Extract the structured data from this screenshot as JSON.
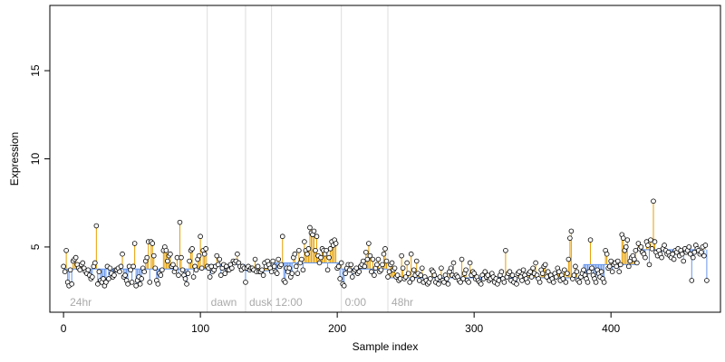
{
  "chart_data": {
    "type": "scatter",
    "title": "",
    "xlabel": "Sample index",
    "ylabel": "Expression",
    "xlim": [
      -10,
      480
    ],
    "ylim": [
      1.3,
      18.7
    ],
    "x_ticks": [
      0,
      100,
      200,
      300,
      400
    ],
    "y_ticks": [
      5,
      10,
      15
    ],
    "grid": false,
    "legend": "none",
    "colors": {
      "above_stem": "#E69F00",
      "below_stem": "#6495ED",
      "marker_edge": "#000000",
      "marker_fill": "#ffffff",
      "boundary_line": "#dddddd",
      "annotation": "#aaaaaa",
      "frame": "#000000"
    },
    "annotations": [
      {
        "x": 2,
        "boundary": null,
        "label": "24hr"
      },
      {
        "x": 105,
        "boundary": 105,
        "label": "dawn"
      },
      {
        "x": 133,
        "boundary": 133,
        "label": "dusk"
      },
      {
        "x": 152,
        "boundary": 152,
        "label": "12:00"
      },
      {
        "x": 203,
        "boundary": 203,
        "label": "0:00"
      },
      {
        "x": 237,
        "boundary": 237,
        "label": "48hr"
      }
    ],
    "baseline_segments": [
      {
        "x_start": 0,
        "x_end": 105,
        "value": 3.75
      },
      {
        "x_start": 105,
        "x_end": 133,
        "value": 4.0
      },
      {
        "x_start": 133,
        "x_end": 152,
        "value": 3.65
      },
      {
        "x_start": 152,
        "x_end": 203,
        "value": 4.1
      },
      {
        "x_start": 203,
        "x_end": 237,
        "value": 3.75
      },
      {
        "x_start": 237,
        "x_end": 380,
        "value": 3.25
      },
      {
        "x_start": 380,
        "x_end": 420,
        "value": 4.0
      },
      {
        "x_start": 420,
        "x_end": 461,
        "value": 4.85
      }
    ],
    "series": [
      {
        "values": [
          3.9,
          3.6,
          4.8,
          3.0,
          2.8,
          3.7,
          2.9,
          4.2,
          4.3,
          4.4,
          4.0,
          3.8,
          3.7,
          4.0,
          4.1,
          3.8,
          3.6,
          3.5,
          3.7,
          3.4,
          3.2,
          3.3,
          3.9,
          4.1,
          6.2,
          2.9,
          3.6,
          3.1,
          3.0,
          3.2,
          2.8,
          3.0,
          3.9,
          3.2,
          3.8,
          3.5,
          3.3,
          3.4,
          3.7,
          3.7,
          3.8,
          3.6,
          3.9,
          4.6,
          3.3,
          3.4,
          3.1,
          2.9,
          3.9,
          3.7,
          3.0,
          3.9,
          5.2,
          2.8,
          3.1,
          3.3,
          2.9,
          3.2,
          3.8,
          3.6,
          4.2,
          4.4,
          5.3,
          3.0,
          5.3,
          5.2,
          4.5,
          3.8,
          3.1,
          2.9,
          3.5,
          3.4,
          3.7,
          4.8,
          5.0,
          4.8,
          4.2,
          4.5,
          4.6,
          3.9,
          4.0,
          3.6,
          3.8,
          4.4,
          3.4,
          6.4,
          4.4,
          3.7,
          3.4,
          3.2,
          2.9,
          3.5,
          4.2,
          4.8,
          4.9,
          3.3,
          3.9,
          3.7,
          4.3,
          4.5,
          5.6,
          3.8,
          4.8,
          4.6,
          4.9,
          3.9,
          3.8,
          3.3,
          3.9,
          3.6,
          3.7,
          3.9,
          4.5,
          4.0,
          4.3,
          3.4,
          3.8,
          4.0,
          3.5,
          3.9,
          3.7,
          3.7,
          4.0,
          3.8,
          4.2,
          4.1,
          4.2,
          4.6,
          4.1,
          3.9,
          3.7,
          3.9,
          3.8,
          3.0,
          3.8,
          3.9,
          3.7,
          3.8,
          3.8,
          3.7,
          4.3,
          3.6,
          3.9,
          3.6,
          3.6,
          3.7,
          3.4,
          4.1,
          3.9,
          4.2,
          4.0,
          3.8,
          3.6,
          4.2,
          3.9,
          3.6,
          3.5,
          4.3,
          3.9,
          4.0,
          5.6,
          3.1,
          3.0,
          3.8,
          3.6,
          3.8,
          3.3,
          3.5,
          4.4,
          4.6,
          3.9,
          3.5,
          4.8,
          4.1,
          4.3,
          3.7,
          5.3,
          4.8,
          4.6,
          4.9,
          6.1,
          5.8,
          5.7,
          5.9,
          4.8,
          5.6,
          4.5,
          4.1,
          4.4,
          4.9,
          4.8,
          4.6,
          4.8,
          3.7,
          4.4,
          4.9,
          5.3,
          5.1,
          5.4,
          5.2,
          3.8,
          3.9,
          3.2,
          4.1,
          2.9,
          2.8,
          3.5,
          3.8,
          4.0,
          3.7,
          4.0,
          3.3,
          3.6,
          3.7,
          3.8,
          3.5,
          3.6,
          3.9,
          4.0,
          4.2,
          3.9,
          4.7,
          4.3,
          5.2,
          4.5,
          3.6,
          4.3,
          3.4,
          3.8,
          4.0,
          4.3,
          3.6,
          3.7,
          4.0,
          4.6,
          4.9,
          4.2,
          3.3,
          3.6,
          4.0,
          4.1,
          3.7,
          3.8,
          3.3,
          3.4,
          3.1,
          3.2,
          4.5,
          3.8,
          3.2,
          3.3,
          4.1,
          3.5,
          3.0,
          4.6,
          3.2,
          3.7,
          3.4,
          4.2,
          3.5,
          3.1,
          3.4,
          3.8,
          3.0,
          3.3,
          3.1,
          2.9,
          3.0,
          3.2,
          3.7,
          3.6,
          3.4,
          3.0,
          3.2,
          2.9,
          3.3,
          3.8,
          3.1,
          3.0,
          3.4,
          3.2,
          2.9,
          3.6,
          3.8,
          3.4,
          4.1,
          3.3,
          3.4,
          3.3,
          3.1,
          3.0,
          4.3,
          3.2,
          3.5,
          3.7,
          3.1,
          3.0,
          4.1,
          3.4,
          3.6,
          3.5,
          3.2,
          3.3,
          3.1,
          3.0,
          2.9,
          3.4,
          3.2,
          3.6,
          3.3,
          3.4,
          3.1,
          3.2,
          3.5,
          3.3,
          3.0,
          3.2,
          2.9,
          3.1,
          3.4,
          3.6,
          3.2,
          3.0,
          4.8,
          3.3,
          3.5,
          3.6,
          3.1,
          3.4,
          3.0,
          3.2,
          2.9,
          3.5,
          3.6,
          3.3,
          3.1,
          3.7,
          3.4,
          3.2,
          3.0,
          3.5,
          3.6,
          3.3,
          3.8,
          3.5,
          4.1,
          3.4,
          3.2,
          3.0,
          3.7,
          3.5,
          3.9,
          4.0,
          3.3,
          3.6,
          3.1,
          3.4,
          3.2,
          3.0,
          3.5,
          3.3,
          3.8,
          3.6,
          3.1,
          3.4,
          3.2,
          3.7,
          3.0,
          3.5,
          4.3,
          5.5,
          5.9,
          3.2,
          3.4,
          3.9,
          3.6,
          3.1,
          3.0,
          3.3,
          3.5,
          3.7,
          3.4,
          3.2,
          3.0,
          3.6,
          5.4,
          3.8,
          3.4,
          3.2,
          3.0,
          3.7,
          3.5,
          3.3,
          3.6,
          3.2,
          3.0,
          4.8,
          4.6,
          3.8,
          3.9,
          4.2,
          3.6,
          4.0,
          4.1,
          3.9,
          4.2,
          3.6,
          4.0,
          5.7,
          5.5,
          4.8,
          5.0,
          5.4,
          3.9,
          4.2,
          4.4,
          4.5,
          4.3,
          4.8,
          4.1,
          5.2,
          4.9,
          5.0,
          4.7,
          4.6,
          4.4,
          5.3,
          5.1,
          4.0,
          5.4,
          4.9,
          7.6,
          5.3,
          4.7,
          4.5,
          4.8,
          4.6,
          4.4,
          4.9,
          5.1,
          4.8,
          4.6,
          4.7,
          4.5,
          4.4,
          4.6,
          4.3,
          4.8,
          4.7,
          4.9,
          4.5,
          4.8,
          4.6,
          4.2,
          4.9,
          4.7,
          4.8,
          5.0,
          4.6,
          3.1,
          4.4,
          4.7,
          5.1,
          4.9,
          4.8,
          4.6,
          4.7,
          5.0,
          4.5,
          5.1,
          3.1
        ]
      }
    ]
  }
}
